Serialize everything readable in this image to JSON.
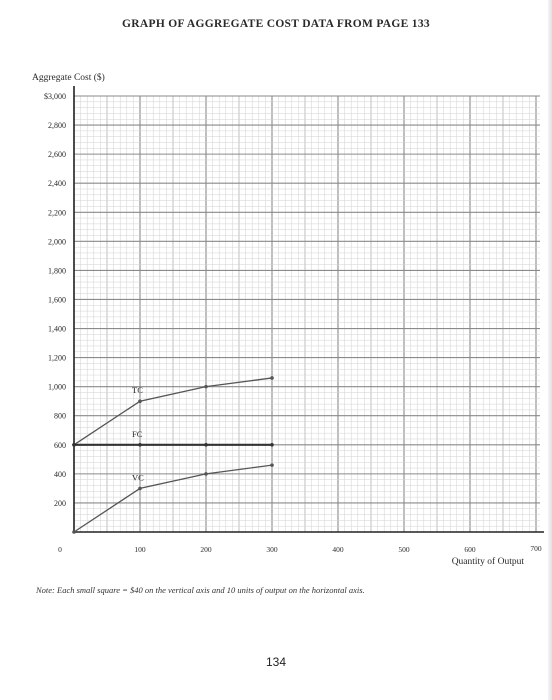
{
  "title": "GRAPH OF AGGREGATE COST DATA FROM PAGE 133",
  "note": "Note: Each small square = $40 on the vertical axis and 10 units of output on the horizontal axis.",
  "page_number": "134",
  "chart_data": {
    "type": "line",
    "title": "GRAPH OF AGGREGATE COST DATA FROM PAGE 133",
    "ylabel": "Aggregate Cost ($)",
    "xlabel": "Quantity of Output",
    "xlim": [
      0,
      700
    ],
    "ylim": [
      0,
      3000
    ],
    "grid": true,
    "x_ticks": [
      {
        "value": 0,
        "label": "0"
      },
      {
        "value": 100,
        "label": "100"
      },
      {
        "value": 200,
        "label": "200"
      },
      {
        "value": 300,
        "label": "300"
      },
      {
        "value": 400,
        "label": "400"
      },
      {
        "value": 500,
        "label": "500"
      },
      {
        "value": 600,
        "label": "600"
      },
      {
        "value": 700,
        "label": "700"
      }
    ],
    "y_ticks": [
      {
        "value": 3000,
        "label": "$3,000"
      },
      {
        "value": 2800,
        "label": "2,800"
      },
      {
        "value": 2600,
        "label": "2,600"
      },
      {
        "value": 2400,
        "label": "2,400"
      },
      {
        "value": 2200,
        "label": "2,200"
      },
      {
        "value": 2000,
        "label": "2,000"
      },
      {
        "value": 1800,
        "label": "1,800"
      },
      {
        "value": 1600,
        "label": "1,600"
      },
      {
        "value": 1400,
        "label": "1,400"
      },
      {
        "value": 1200,
        "label": "1,200"
      },
      {
        "value": 1000,
        "label": "1,000"
      },
      {
        "value": 800,
        "label": "800"
      },
      {
        "value": 600,
        "label": "600"
      },
      {
        "value": 400,
        "label": "400"
      },
      {
        "value": 200,
        "label": "200"
      }
    ],
    "series": [
      {
        "name": "TC",
        "x": [
          0,
          100,
          200,
          300
        ],
        "values": [
          600,
          900,
          1000,
          1060
        ],
        "color": "#555555"
      },
      {
        "name": "FC",
        "x": [
          0,
          100,
          200,
          300
        ],
        "values": [
          600,
          600,
          600,
          600
        ],
        "color": "#333333"
      },
      {
        "name": "VC",
        "x": [
          0,
          100,
          200,
          300
        ],
        "values": [
          0,
          300,
          400,
          460
        ],
        "color": "#555555"
      }
    ]
  }
}
